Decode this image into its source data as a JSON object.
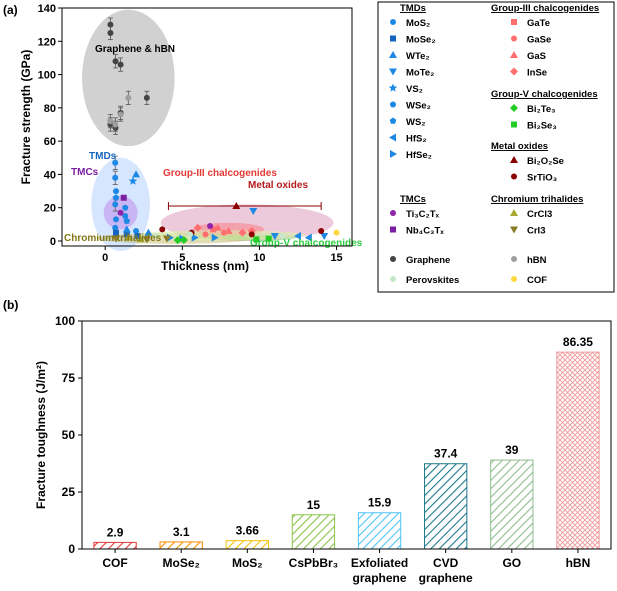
{
  "panel_labels": {
    "a": "(a)",
    "b": "(b)"
  },
  "chart_data": [
    {
      "type": "scatter",
      "title": "",
      "xlabel": "Thickness (nm)",
      "ylabel": "Fracture strength (GPa)",
      "xlim": [
        -2.8,
        16
      ],
      "ylim": [
        -3,
        140
      ],
      "xticks": [
        0,
        5,
        10,
        15
      ],
      "yticks": [
        0,
        20,
        40,
        60,
        80,
        100,
        120,
        140
      ],
      "grid": false,
      "region_labels": [
        {
          "text": "Graphene & hBN",
          "color": "#000000"
        },
        {
          "text": "TMDs",
          "color": "#1565c0"
        },
        {
          "text": "TMCs",
          "color": "#7b1fa2"
        },
        {
          "text": "Group-III chalcogenides",
          "color": "#e53935"
        },
        {
          "text": "Metal oxides",
          "color": "#b71c1c"
        },
        {
          "text": "Chromium trihalides",
          "color": "#827717"
        },
        {
          "text": "Group-V chalcogenides",
          "color": "#2ecc40"
        }
      ],
      "regions": [
        {
          "name": "Graphene & hBN",
          "color": "#7a7a7a",
          "opacity": 0.35,
          "cx": 1.5,
          "cy": 98,
          "rx": 3.0,
          "ry": 41
        },
        {
          "name": "TMDs",
          "color": "#5f9bff",
          "opacity": 0.25,
          "cx": 1.0,
          "cy": 22,
          "rx": 1.9,
          "ry": 28
        },
        {
          "name": "TMCs",
          "color": "#b56be0",
          "opacity": 0.4,
          "cx": 1.0,
          "cy": 17,
          "rx": 1.1,
          "ry": 10
        },
        {
          "name": "Metal oxides",
          "color": "#cc6699",
          "opacity": 0.35,
          "cx": 9.2,
          "cy": 11,
          "rx": 5.6,
          "ry": 11
        },
        {
          "name": "Group-III chalcogenides",
          "color": "#ff5555",
          "opacity": 0.35,
          "cx": 8.0,
          "cy": 7,
          "rx": 2.3,
          "ry": 4
        },
        {
          "name": "Chromium trihalides",
          "color": "#b5a842",
          "opacity": 0.4,
          "cx": 4.5,
          "cy": 1.5,
          "rx": 5.0,
          "ry": 3.2
        },
        {
          "name": "Group-V chalcogenides",
          "color": "#59d659",
          "opacity": 0.35,
          "cx": 10.0,
          "cy": 2.0,
          "rx": 2.4,
          "ry": 2.0
        },
        {
          "name": "Perovskites",
          "color": "#d8f0a8",
          "opacity": 0.55,
          "cx": 7.5,
          "cy": 3.5,
          "rx": 5.5,
          "ry": 3.0
        }
      ],
      "series": [
        {
          "name": "Graphene",
          "marker": "circle",
          "color": "#444444",
          "points": [
            [
              0.34,
              130
            ],
            [
              0.34,
              125
            ],
            [
              0.67,
              108
            ],
            [
              1.0,
              106
            ],
            [
              1.0,
              77
            ],
            [
              0.34,
              70
            ],
            [
              0.67,
              68
            ],
            [
              2.7,
              86
            ]
          ]
        },
        {
          "name": "hBN",
          "marker": "circle",
          "color": "#9e9e9e",
          "points": [
            [
              0.33,
              72
            ],
            [
              0.66,
              70
            ],
            [
              1.0,
              76
            ],
            [
              1.5,
              86
            ]
          ]
        },
        {
          "name": "MoS₂",
          "marker": "circle",
          "color": "#1e88e5",
          "points": [
            [
              0.65,
              47
            ],
            [
              0.65,
              38
            ],
            [
              0.65,
              22
            ],
            [
              1.3,
              15
            ],
            [
              0.65,
              8
            ],
            [
              2.0,
              6
            ]
          ]
        },
        {
          "name": "MoSe₂",
          "marker": "square",
          "color": "#1565c0",
          "points": [
            [
              0.7,
              5
            ],
            [
              1.4,
              4
            ],
            [
              2.1,
              3
            ]
          ]
        },
        {
          "name": "WTe₂",
          "marker": "triangle",
          "color": "#1e88e5",
          "points": [
            [
              2.0,
              40
            ],
            [
              1.4,
              7
            ],
            [
              2.8,
              5
            ]
          ]
        },
        {
          "name": "MoTe₂",
          "marker": "triangle-down",
          "color": "#1e88e5",
          "points": [
            [
              9.6,
              18
            ],
            [
              14.2,
              3
            ],
            [
              11.0,
              3
            ]
          ]
        },
        {
          "name": "VS₂",
          "marker": "star",
          "color": "#1e88e5",
          "points": [
            [
              1.8,
              36
            ]
          ]
        },
        {
          "name": "WSe₂",
          "marker": "circle",
          "color": "#1e88e5",
          "points": [
            [
              0.7,
              30
            ],
            [
              1.3,
              20
            ],
            [
              0.7,
              13
            ]
          ]
        },
        {
          "name": "WS₂",
          "marker": "pentagon",
          "color": "#1e88e5",
          "points": [
            [
              0.7,
              26
            ],
            [
              1.4,
              12
            ]
          ]
        },
        {
          "name": "HfS₂",
          "marker": "triangle-left",
          "color": "#1e88e5",
          "points": [
            [
              12.5,
              3
            ],
            [
              13.2,
              2
            ]
          ]
        },
        {
          "name": "HfSe₂",
          "marker": "triangle-right",
          "color": "#1e88e5",
          "points": [
            [
              4.2,
              2
            ],
            [
              5.0,
              1.5
            ],
            [
              5.8,
              2
            ],
            [
              7.1,
              2
            ]
          ]
        },
        {
          "name": "GaTe",
          "marker": "square",
          "color": "#ff6f6f",
          "points": [
            [
              7.0,
              7
            ]
          ]
        },
        {
          "name": "GaSe",
          "marker": "circle",
          "color": "#ff6f6f",
          "points": [
            [
              6.5,
              4
            ],
            [
              7.7,
              5
            ]
          ]
        },
        {
          "name": "GaS",
          "marker": "triangle",
          "color": "#ff6f6f",
          "points": [
            [
              7.3,
              8
            ],
            [
              8.0,
              6
            ]
          ]
        },
        {
          "name": "InSe",
          "marker": "diamond",
          "color": "#ff6f6f",
          "points": [
            [
              6.0,
              8
            ],
            [
              8.9,
              5
            ],
            [
              9.5,
              6
            ]
          ]
        },
        {
          "name": "Bi₂Te₃",
          "marker": "diamond",
          "color": "#22cc22",
          "points": [
            [
              4.7,
              0.5
            ],
            [
              5.1,
              0.6
            ]
          ]
        },
        {
          "name": "Bi₂Se₃",
          "marker": "square",
          "color": "#22cc22",
          "points": [
            [
              9.8,
              1.0
            ],
            [
              10.6,
              1.4
            ]
          ]
        },
        {
          "name": "Bi₂O₂Se",
          "marker": "triangle",
          "color": "#8b0000",
          "points": [
            [
              8.5,
              21
            ]
          ]
        },
        {
          "name": "SrTiO₃",
          "marker": "circle",
          "color": "#8b0000",
          "points": [
            [
              3.7,
              7
            ],
            [
              14.0,
              6
            ],
            [
              5.6,
              5
            ],
            [
              9.5,
              4
            ]
          ]
        },
        {
          "name": "Ti₃C₂Tₓ",
          "marker": "circle",
          "color": "#8e24aa",
          "points": [
            [
              1.0,
              17
            ],
            [
              6.8,
              9
            ]
          ]
        },
        {
          "name": "Nb₄C₃Tₓ",
          "marker": "square",
          "color": "#7b1fa2",
          "points": [
            [
              1.2,
              26
            ]
          ]
        },
        {
          "name": "CrCl3",
          "marker": "triangle",
          "color": "#a8a832",
          "points": [
            [
              1.5,
              2
            ],
            [
              2.3,
              1
            ]
          ]
        },
        {
          "name": "CrI3",
          "marker": "triangle-down",
          "color": "#8a7b2a",
          "points": [
            [
              0.7,
              1.5
            ],
            [
              2.7,
              1.0
            ],
            [
              4.0,
              1.5
            ]
          ]
        },
        {
          "name": "Perovskites",
          "marker": "circle",
          "color": "#c8e6c9",
          "points": [
            [
              3.3,
              3
            ],
            [
              5.5,
              4
            ],
            [
              11.5,
              3
            ]
          ]
        },
        {
          "name": "COF",
          "marker": "circle",
          "color": "#ffd740",
          "points": [
            [
              15.0,
              5
            ]
          ]
        }
      ],
      "error_bars_x": [
        {
          "y": 21,
          "x_low": 4.1,
          "x_high": 14.0,
          "color": "#8b0000"
        }
      ],
      "legend": {
        "placement": "right",
        "groups": [
          {
            "heading": "TMDs",
            "entries": [
              "MoS₂",
              "MoSe₂",
              "WTe₂",
              "MoTe₂",
              "VS₂",
              "WSe₂",
              "WS₂",
              "HfS₂",
              "HfSe₂"
            ]
          },
          {
            "heading": "Group-III chalcogenides",
            "entries": [
              "GaTe",
              "GaSe",
              "GaS",
              "InSe"
            ]
          },
          {
            "heading": "Group-V chalcogenides",
            "entries": [
              "Bi₂Te₃",
              "Bi₂Se₃"
            ]
          },
          {
            "heading": "Metal oxides",
            "entries": [
              "Bi₂O₂Se",
              "SrTiO₃"
            ]
          },
          {
            "heading": "TMCs",
            "entries": [
              "Ti₃C₂Tₓ",
              "Nb₄C₃Tₓ"
            ]
          },
          {
            "heading": "Chromium trihalides",
            "entries": [
              "CrCl3",
              "CrI3"
            ]
          },
          {
            "heading": "",
            "entries": [
              "Graphene",
              "hBN",
              "Perovskites",
              "COF"
            ]
          }
        ]
      }
    },
    {
      "type": "bar",
      "title": "",
      "xlabel": "",
      "ylabel": "Fracture toughness (J/m²)",
      "ylim": [
        0,
        100
      ],
      "yticks": [
        0,
        25,
        50,
        75,
        100
      ],
      "grid": false,
      "categories": [
        [
          "COF"
        ],
        [
          "MoSe₂"
        ],
        [
          "MoS₂"
        ],
        [
          "CsPbBr₃"
        ],
        [
          "Exfoliated",
          "graphene"
        ],
        [
          "CVD",
          "graphene"
        ],
        [
          "GO"
        ],
        [
          "hBN"
        ]
      ],
      "values": [
        2.9,
        3.1,
        3.66,
        15,
        15.9,
        37.4,
        39,
        86.35
      ],
      "value_labels": [
        "2.9",
        "3.1",
        "3.66",
        "15",
        "15.9",
        "37.4",
        "39",
        "86.35"
      ],
      "colors": [
        "#e53935",
        "#fb8c00",
        "#f4c20d",
        "#8bc34a",
        "#4fc3f7",
        "#1a7a8a",
        "#8fbc8f",
        "#ef9a9a"
      ],
      "pattern": "hatch"
    }
  ]
}
